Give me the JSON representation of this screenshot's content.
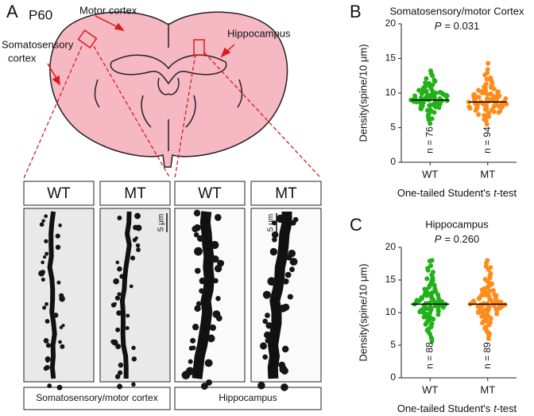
{
  "panel_a": {
    "letter": "A",
    "age": "P60",
    "motor": "Motor cortex",
    "somato": [
      "Somatosensory",
      "cortex"
    ],
    "hippo": "Hippocampus",
    "headers": [
      "WT",
      "MT",
      "WT",
      "MT"
    ],
    "scale": "5 μm",
    "regions": [
      "Somatosensory/motor cortex",
      "Hippocampus"
    ]
  },
  "chart_data": [
    {
      "type": "strip",
      "letter": "B",
      "title": "Somatosensory/motor Cortex",
      "annotation": {
        "symbol": "P",
        "text": "= 0.031"
      },
      "ylabel": "Density(spine/10 μm)",
      "xlabel": [
        "One-tailed Student's",
        "t",
        "-test"
      ],
      "categories": [
        "WT",
        "MT"
      ],
      "colors": [
        "#22b11a",
        "#ff8c1a"
      ],
      "n_labels": [
        "n = 76",
        "n = 94"
      ],
      "medians": [
        9.0,
        8.7
      ],
      "ylim": [
        0,
        20
      ],
      "yticks": [
        0,
        5,
        10,
        15,
        20
      ],
      "values": [
        [
          9.0,
          9.3,
          8.7,
          10.1,
          8.2,
          9.6,
          11.2,
          7.5,
          8.9,
          9.8,
          10.5,
          8.4,
          9.1,
          12.1,
          13.2,
          6.8,
          7.9,
          9.4,
          10.8,
          8.6,
          9.2,
          11.7,
          10.3,
          8.1,
          7.2,
          9.7,
          8.8,
          10.0,
          6.1,
          9.5,
          8.3,
          10.6,
          9.0,
          11.4,
          7.7,
          8.5,
          9.9,
          12.5,
          5.6,
          9.3,
          8.0,
          10.2,
          9.6,
          7.4,
          11.0,
          8.9,
          9.1,
          10.4,
          8.2,
          6.5,
          9.8,
          10.9,
          8.7,
          9.2,
          7.0,
          11.9,
          9.4,
          8.4,
          10.1,
          9.0,
          7.8,
          12.8,
          8.6,
          9.7,
          10.7,
          8.1,
          6.3,
          9.5,
          11.5,
          8.8,
          9.3,
          10.0,
          7.6,
          9.1,
          8.5,
          10.3
        ],
        [
          8.7,
          9.0,
          8.3,
          9.6,
          7.8,
          10.4,
          8.5,
          11.3,
          7.2,
          8.9,
          9.3,
          8.1,
          10.0,
          12.6,
          14.3,
          6.5,
          8.6,
          9.8,
          7.5,
          8.8,
          10.7,
          8.4,
          9.1,
          7.9,
          11.8,
          8.2,
          6.2,
          9.5,
          8.7,
          10.2,
          7.0,
          8.9,
          9.4,
          12.0,
          8.0,
          7.6,
          10.9,
          8.5,
          9.2,
          5.5,
          8.3,
          10.5,
          7.4,
          9.0,
          8.6,
          11.1,
          7.7,
          9.7,
          8.1,
          6.8,
          10.1,
          8.8,
          9.3,
          7.3,
          12.9,
          8.4,
          9.9,
          7.9,
          10.6,
          8.2,
          6.0,
          9.1,
          8.7,
          11.5,
          7.1,
          8.5,
          9.6,
          10.3,
          7.8,
          8.9,
          9.4,
          8.0,
          13.4,
          7.5,
          10.8,
          8.6,
          9.2,
          6.6,
          8.3,
          11.9,
          7.6,
          9.8,
          8.1,
          10.0,
          8.7,
          7.2,
          9.5,
          12.2,
          8.4,
          6.9,
          9.0,
          10.2,
          7.9,
          8.8
        ]
      ]
    },
    {
      "type": "strip",
      "letter": "C",
      "title": "Hippocampus",
      "annotation": {
        "symbol": "P",
        "text": "= 0.260"
      },
      "ylabel": "Density(spine/10 μm)",
      "xlabel": [
        "One-tailed Student's",
        "t",
        "-test"
      ],
      "categories": [
        "WT",
        "MT"
      ],
      "colors": [
        "#22b11a",
        "#ff8c1a"
      ],
      "n_labels": [
        "n = 88",
        "n = 89"
      ],
      "medians": [
        11.3,
        11.3
      ],
      "ylim": [
        0,
        20
      ],
      "yticks": [
        0,
        5,
        10,
        15,
        20
      ],
      "values": [
        [
          11.3,
          12.0,
          10.5,
          13.2,
          9.4,
          11.8,
          14.6,
          8.7,
          11.1,
          12.5,
          10.0,
          15.4,
          17.9,
          7.3,
          11.6,
          9.8,
          13.7,
          10.9,
          12.3,
          6.2,
          11.4,
          16.2,
          9.1,
          12.8,
          10.4,
          14.1,
          8.2,
          11.0,
          13.0,
          5.6,
          10.7,
          12.1,
          15.0,
          9.6,
          11.9,
          7.8,
          13.5,
          10.2,
          11.5,
          16.8,
          9.0,
          12.6,
          10.8,
          14.4,
          8.5,
          11.2,
          13.9,
          10.1,
          17.2,
          7.0,
          11.7,
          12.9,
          9.3,
          15.8,
          10.6,
          11.3,
          8.0,
          13.3,
          12.2,
          6.7,
          10.3,
          14.9,
          11.0,
          9.7,
          12.4,
          16.5,
          10.9,
          8.8,
          11.6,
          13.1,
          7.5,
          12.7,
          10.0,
          15.2,
          11.4,
          9.2,
          18.0,
          12.0,
          10.5,
          11.8,
          9.5,
          13.6,
          8.3,
          11.1,
          14.2,
          10.4,
          12.3,
          6.0
        ],
        [
          11.3,
          11.9,
          10.6,
          12.8,
          9.7,
          11.5,
          14.2,
          8.9,
          11.0,
          12.4,
          10.2,
          15.7,
          18.0,
          7.6,
          11.7,
          9.9,
          13.4,
          10.8,
          12.1,
          6.5,
          11.2,
          16.0,
          9.3,
          12.6,
          10.5,
          14.8,
          8.4,
          11.1,
          13.2,
          6.0,
          10.9,
          12.2,
          15.3,
          9.5,
          11.8,
          8.1,
          13.7,
          10.3,
          11.4,
          17.1,
          9.1,
          12.7,
          10.7,
          14.0,
          8.6,
          11.3,
          13.8,
          10.0,
          16.6,
          7.3,
          11.6,
          12.9,
          9.4,
          15.6,
          10.4,
          11.2,
          8.2,
          13.0,
          12.3,
          7.0,
          10.1,
          14.5,
          11.0,
          9.8,
          12.5,
          17.6,
          10.6,
          8.7,
          11.5,
          13.3,
          7.8,
          12.6,
          10.2,
          15.1,
          11.6,
          9.0,
          16.9,
          12.0,
          10.9,
          11.8,
          9.6,
          13.5,
          8.5,
          11.2,
          14.4,
          10.5,
          12.2,
          6.8,
          11.4
        ]
      ]
    }
  ]
}
